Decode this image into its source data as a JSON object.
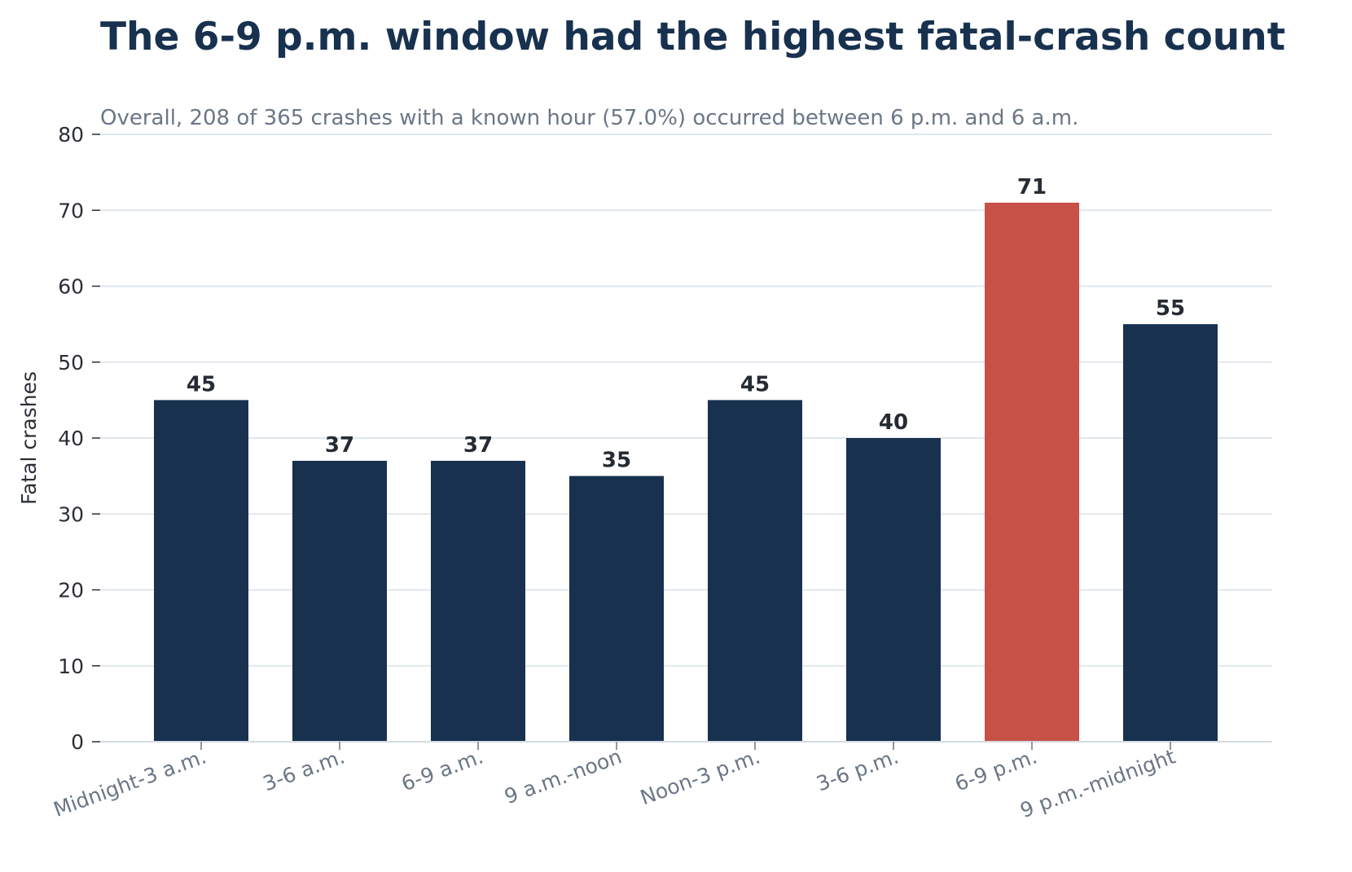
{
  "chart_data": {
    "type": "bar",
    "title": "The 6-9 p.m. window had the highest fatal-crash count",
    "subtitle": "Overall, 208 of 365 crashes with a known hour (57.0%) occurred between 6 p.m. and 6 a.m.",
    "xlabel": "",
    "ylabel": "Fatal crashes",
    "categories": [
      "Midnight-3 a.m.",
      "3-6 a.m.",
      "6-9 a.m.",
      "9 a.m.-noon",
      "Noon-3 p.m.",
      "3-6 p.m.",
      "6-9 p.m.",
      "9 p.m.-midnight"
    ],
    "values": [
      45,
      37,
      37,
      35,
      45,
      40,
      71,
      55
    ],
    "highlight_index": 6,
    "ylim": [
      0,
      80
    ],
    "yticks": [
      "0",
      "10",
      "20",
      "30",
      "40",
      "50",
      "60",
      "70",
      "80"
    ],
    "grid": "horizontal",
    "legend": "none",
    "colors": {
      "bar": "#18314f",
      "highlight": "#c75146",
      "grid": "#e1e7ec",
      "axis": "#d5dde4"
    }
  }
}
